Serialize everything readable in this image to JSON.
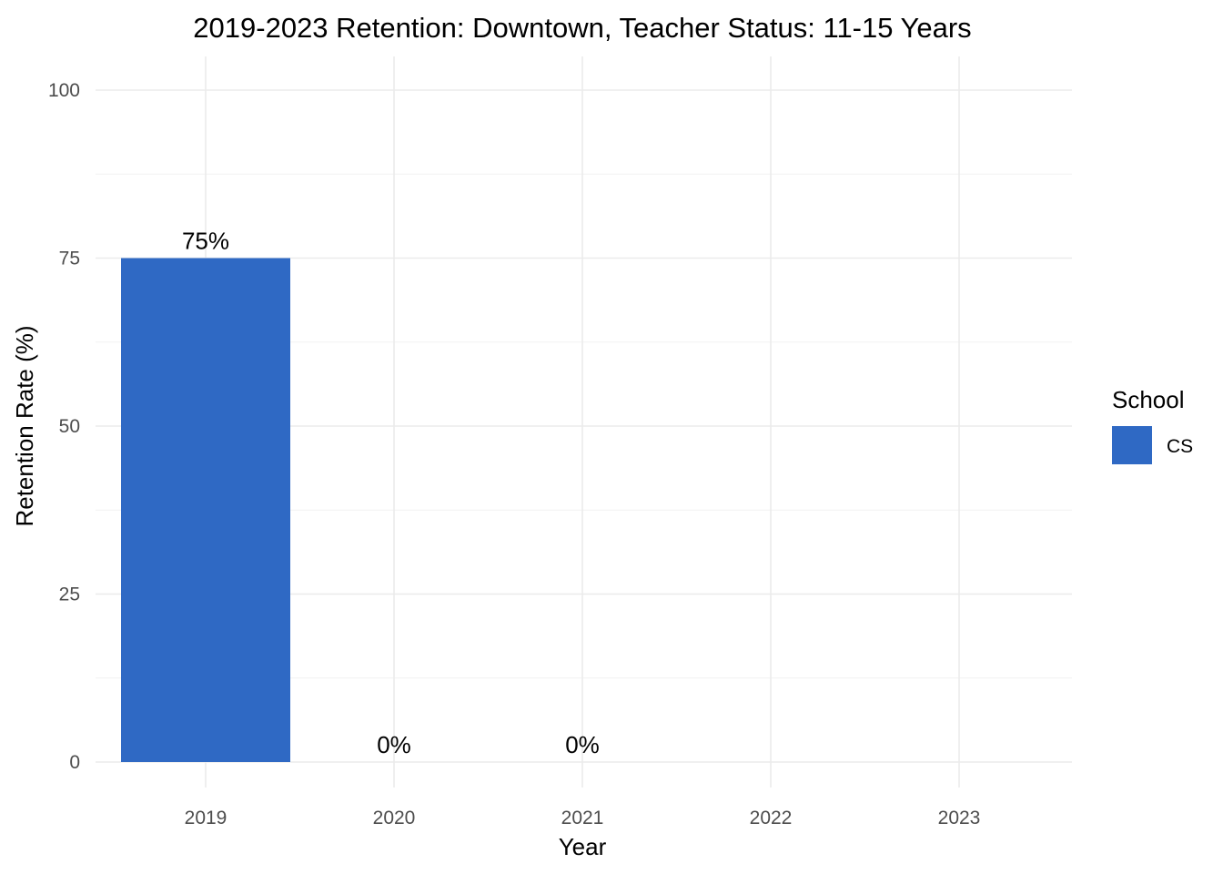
{
  "chart_data": {
    "type": "bar",
    "title": "2019-2023 Retention: Downtown, Teacher Status: 11-15 Years",
    "xlabel": "Year",
    "ylabel": "Retention Rate (%)",
    "categories": [
      "2019",
      "2020",
      "2021",
      "2022",
      "2023"
    ],
    "series": [
      {
        "name": "CS",
        "color": "#2f69c4",
        "values": [
          75,
          0,
          0,
          null,
          null
        ],
        "labels": [
          "75%",
          "0%",
          "0%",
          "",
          ""
        ]
      }
    ],
    "ylim": [
      0,
      100
    ],
    "yticks": [
      "0",
      "25",
      "50",
      "75",
      "100"
    ],
    "grid": true,
    "legend": {
      "title": "School",
      "position": "right"
    }
  }
}
